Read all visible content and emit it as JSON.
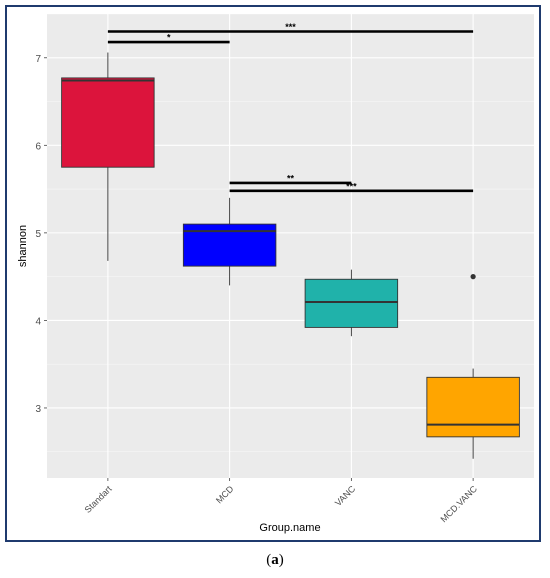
{
  "caption": {
    "open": "(",
    "letter": "a",
    "close": ")"
  },
  "chart_data": {
    "type": "boxplot",
    "xlabel": "Group.name",
    "ylabel": "shannon",
    "ylim": [
      2.2,
      7.5
    ],
    "yticks": [
      3,
      4,
      5,
      6,
      7
    ],
    "grid": true,
    "background": "#ebebeb",
    "categories": [
      "Standart",
      "MCD",
      "VANC",
      "MCD.VANC"
    ],
    "boxes": [
      {
        "category": "Standart",
        "fill": "#dc143c",
        "whisker_low": 4.68,
        "q1": 5.75,
        "median": 6.74,
        "q3": 6.77,
        "whisker_high": 7.06,
        "outliers": []
      },
      {
        "category": "MCD",
        "fill": "#0000ff",
        "whisker_low": 4.4,
        "q1": 4.62,
        "median": 5.02,
        "q3": 5.1,
        "whisker_high": 5.4,
        "outliers": []
      },
      {
        "category": "VANC",
        "fill": "#20b2aa",
        "whisker_low": 3.82,
        "q1": 3.92,
        "median": 4.21,
        "q3": 4.47,
        "whisker_high": 4.58,
        "outliers": []
      },
      {
        "category": "MCD.VANC",
        "fill": "#ffa500",
        "whisker_low": 2.42,
        "q1": 2.67,
        "median": 2.81,
        "q3": 3.35,
        "whisker_high": 3.45,
        "outliers": [
          4.5
        ]
      }
    ],
    "significance": [
      {
        "from": "Standart",
        "to": "MCD.VANC",
        "y": 7.3,
        "label": "***"
      },
      {
        "from": "Standart",
        "to": "MCD",
        "y": 7.18,
        "label": "*"
      },
      {
        "from": "MCD",
        "to": "VANC",
        "y": 5.57,
        "label": "**"
      },
      {
        "from": "MCD",
        "to": "MCD.VANC",
        "y": 5.48,
        "label": "***"
      }
    ]
  }
}
